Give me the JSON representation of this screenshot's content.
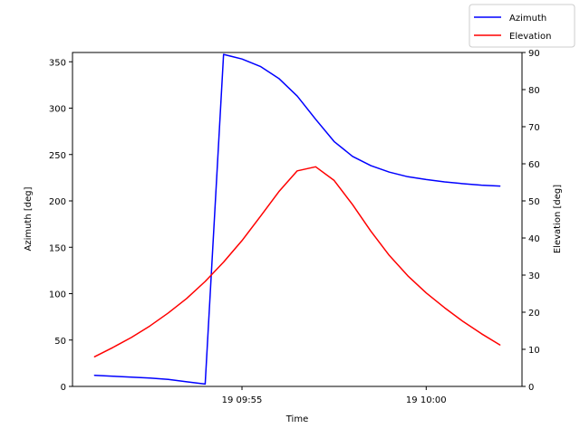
{
  "chart_data": {
    "type": "line",
    "xlabel": "Time",
    "ylabel_left": "Azimuth [deg]",
    "ylabel_right": "Elevation [deg]",
    "x_ticks": [
      "19 09:55",
      "19 10:00"
    ],
    "x_tick_minutes": [
      0,
      5
    ],
    "xlim_minutes": [
      -4.6,
      7.6
    ],
    "ylim_left": [
      0,
      360
    ],
    "ylim_right": [
      0,
      90
    ],
    "yticks_left": [
      0,
      50,
      100,
      150,
      200,
      250,
      300,
      350
    ],
    "yticks_right": [
      0,
      10,
      20,
      30,
      40,
      50,
      60,
      70,
      80,
      90
    ],
    "legend_position": "top-right",
    "grid": false,
    "series": [
      {
        "name": "Azimuth",
        "axis": "left",
        "color": "#0000ff",
        "x_minutes": [
          -4.0,
          -3.5,
          -3.0,
          -2.5,
          -2.0,
          -1.5,
          -1.0,
          -0.5,
          0.0,
          0.5,
          1.0,
          1.5,
          2.0,
          2.5,
          3.0,
          3.5,
          4.0,
          4.5,
          5.0,
          5.5,
          6.0,
          6.5,
          7.0
        ],
        "values": [
          12,
          11,
          10,
          9,
          7.5,
          5,
          2.5,
          358,
          353,
          345,
          332,
          313,
          288,
          264,
          248,
          238,
          231,
          226,
          223,
          220.5,
          218.5,
          217,
          216
        ]
      },
      {
        "name": "Elevation",
        "axis": "right",
        "color": "#ff0000",
        "x_minutes": [
          -4.0,
          -3.5,
          -3.0,
          -2.5,
          -2.0,
          -1.5,
          -1.0,
          -0.5,
          0.0,
          0.5,
          1.0,
          1.5,
          2.0,
          2.5,
          3.0,
          3.5,
          4.0,
          4.5,
          5.0,
          5.5,
          6.0,
          6.5,
          7.0
        ],
        "values": [
          8,
          10.5,
          13.2,
          16.3,
          19.8,
          23.7,
          28.3,
          33.5,
          39.3,
          45.8,
          52.5,
          58.1,
          59.2,
          55.5,
          49.0,
          41.8,
          35.3,
          29.8,
          25.2,
          21.2,
          17.5,
          14.2,
          11.2
        ]
      }
    ]
  }
}
